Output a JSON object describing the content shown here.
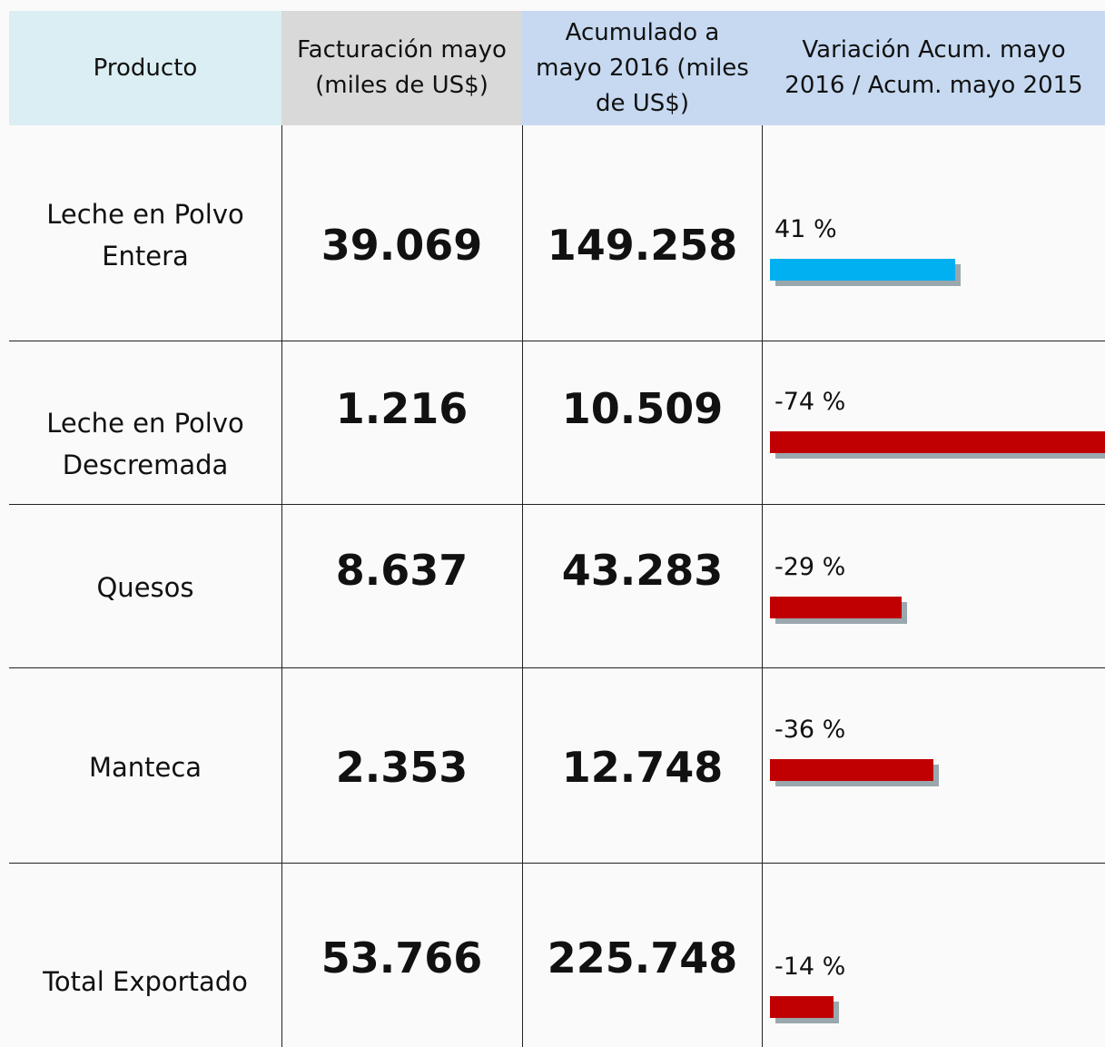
{
  "table": {
    "header": [
      "Producto",
      "Facturación mayo (miles de US$)",
      "Acumulado a mayo 2016 (miles de US$)",
      "Variación Acum. mayo 2016 / Acum. mayo 2015"
    ],
    "rows": [
      {
        "product": "Leche en Polvo Entera",
        "month": "39.069",
        "accumulated": "149.258",
        "variation": 41,
        "variation_label": "41 %"
      },
      {
        "product": "Leche en Polvo Descremada",
        "month": "1.216",
        "accumulated": "10.509",
        "variation": -74,
        "variation_label": "-74 %"
      },
      {
        "product": "Quesos",
        "month": "8.637",
        "accumulated": "43.283",
        "variation": -29,
        "variation_label": "-29 %"
      },
      {
        "product": "Manteca",
        "month": "2.353",
        "accumulated": "12.748",
        "variation": -36,
        "variation_label": "-36 %"
      },
      {
        "product": "Total Exportado",
        "month": "53.766",
        "accumulated": "225.748",
        "variation": -14,
        "variation_label": "-14 %"
      }
    ],
    "positive_color": "#00b0f0",
    "negative_color": "#c00000"
  }
}
